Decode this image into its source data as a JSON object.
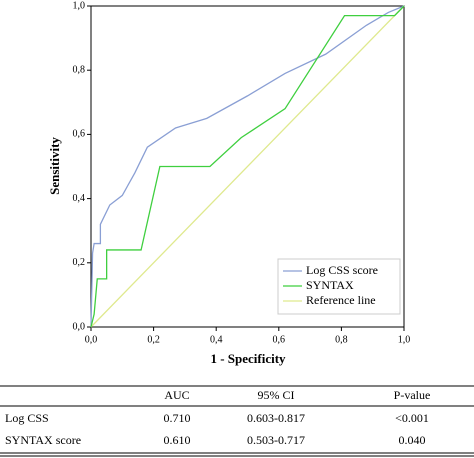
{
  "chart_data": {
    "type": "line",
    "x_label": "1 - Specificity",
    "y_label": "Sensitivity",
    "xlim": [
      0,
      1
    ],
    "ylim": [
      0,
      1
    ],
    "xticks": [
      {
        "value": 0,
        "label": "0,0"
      },
      {
        "value": 0.2,
        "label": "0,2"
      },
      {
        "value": 0.4,
        "label": "0,4"
      },
      {
        "value": 0.6,
        "label": "0,6"
      },
      {
        "value": 0.8,
        "label": "0,8"
      },
      {
        "value": 1,
        "label": "1,0"
      }
    ],
    "yticks": [
      {
        "value": 0,
        "label": "0,0"
      },
      {
        "value": 0.2,
        "label": "0,2"
      },
      {
        "value": 0.4,
        "label": "0,4"
      },
      {
        "value": 0.6,
        "label": "0,6"
      },
      {
        "value": 0.8,
        "label": "0,8"
      },
      {
        "value": 1,
        "label": "1,0"
      }
    ],
    "legend_position": "lower right",
    "series": [
      {
        "name": "Log CSS score",
        "color": "#8a9fd4",
        "x": [
          0,
          0.005,
          0.01,
          0.03,
          0.03,
          0.06,
          0.1,
          0.14,
          0.18,
          0.27,
          0.37,
          0.5,
          0.62,
          0.75,
          0.88,
          0.95,
          1
        ],
        "values": [
          0,
          0.23,
          0.26,
          0.26,
          0.32,
          0.38,
          0.41,
          0.48,
          0.56,
          0.62,
          0.65,
          0.72,
          0.79,
          0.85,
          0.94,
          0.98,
          1
        ]
      },
      {
        "name": "SYNTAX",
        "color": "#3fcf3f",
        "x": [
          0,
          0.01,
          0.02,
          0.05,
          0.05,
          0.16,
          0.22,
          0.38,
          0.48,
          0.62,
          0.81,
          0.97,
          1
        ],
        "values": [
          0,
          0.04,
          0.15,
          0.15,
          0.24,
          0.24,
          0.5,
          0.5,
          0.59,
          0.68,
          0.97,
          0.97,
          1
        ]
      },
      {
        "name": "Reference line",
        "color": "#dfe98e",
        "x": [
          0,
          1
        ],
        "values": [
          0,
          1
        ]
      }
    ]
  },
  "table": {
    "columns": [
      "AUC",
      "95% CI",
      "P-value"
    ],
    "rows": [
      [
        "Log CSS",
        "0.710",
        "0.603-0.817",
        "<0.001"
      ],
      [
        "SYNTAX score",
        "0.610",
        "0.503-0.717",
        "0.040"
      ]
    ]
  }
}
